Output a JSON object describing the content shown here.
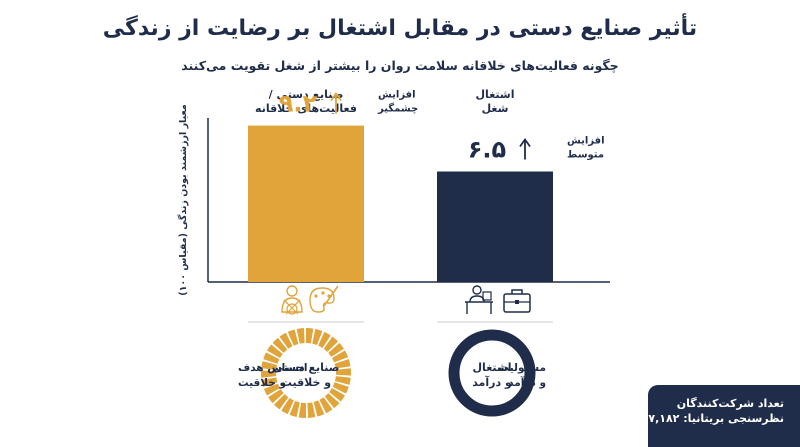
{
  "title": "تأثیر صنایع دستی در مقابل اشتغال بر رضایت از زندگی",
  "subtitle": "چگونه فعالیت‌های خلاقانه سلامت روان را بیشتر از شغل تقویت می‌کنند",
  "colors": {
    "crafts": "#e0a43a",
    "work": "#1f2d4a",
    "axis": "#1f2d4a"
  },
  "chart_data": {
    "type": "bar",
    "ylabel": "معیار ارزشمند بودن زندگی (مقیاس ۱۰۰)",
    "ylim": [
      0,
      10
    ],
    "categories": [
      {
        "label_line1": "صنایع دستی /",
        "label_line2": "فعالیت‌های خلاقانه",
        "value": 9.2,
        "value_label": "۹.۲",
        "change_line1": "افزایش",
        "change_line2": "چشمگیر",
        "icons": [
          "knitting-person-icon",
          "palette-icon"
        ],
        "donut_label_line1": "صنایع دستی",
        "donut_label_line2": "و خلاقیت",
        "side_label_line1": "احساس هدف",
        "side_label_line2": "و خلاقیت"
      },
      {
        "label_line1": "اشتغال",
        "label_line2": "شغل",
        "value": 6.5,
        "value_label": "۶.۵",
        "change_line1": "افزایش",
        "change_line2": "متوسط",
        "icons": [
          "desk-worker-icon",
          "briefcase-icon"
        ],
        "donut_label_line1": "اشتغال",
        "donut_label_line2": "و درآمد",
        "side_label_line1": "مسئولیت",
        "side_label_line2": "و درآمد"
      }
    ]
  },
  "sample": {
    "line1": "تعداد شرکت‌کنندگان",
    "line2": "نظرسنجی بریتانیا: ۷,۱۸۲"
  }
}
